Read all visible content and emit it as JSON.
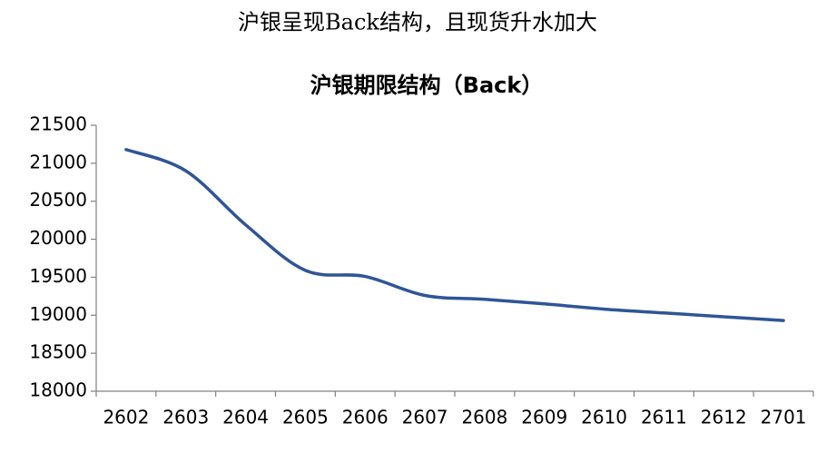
{
  "heading": "沪银呈现Back结构，且现货升水加大",
  "chart_data": {
    "type": "line",
    "title": "沪银期限结构（Back）",
    "categories": [
      "2602",
      "2603",
      "2604",
      "2605",
      "2606",
      "2607",
      "2608",
      "2609",
      "2610",
      "2611",
      "2612",
      "2701"
    ],
    "values": [
      21180,
      20900,
      20190,
      19590,
      19510,
      19260,
      19210,
      19150,
      19080,
      19030,
      18980,
      18930
    ],
    "color": "#2f5597",
    "ylim": [
      18000,
      21500
    ],
    "yticks": [
      18000,
      18500,
      19000,
      19500,
      20000,
      20500,
      21000,
      21500
    ],
    "grid": false
  }
}
